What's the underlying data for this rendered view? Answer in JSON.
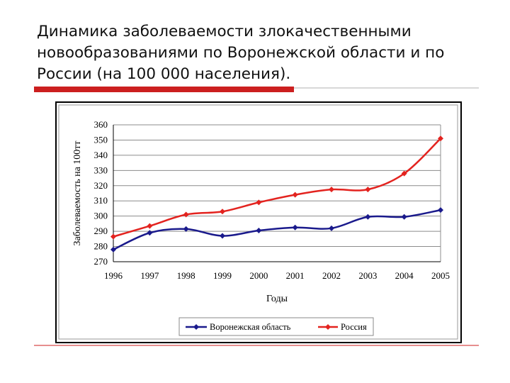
{
  "slide": {
    "title": "Динамика заболеваемости злокачественными новообразованиями по Воронежской области и по России (на 100 000 населения)."
  },
  "colors": {
    "voronezh": "#1a1a8c",
    "russia": "#e3231f",
    "accent_bar": "#cc1f1f"
  },
  "chart_data": {
    "type": "line",
    "title": "",
    "xlabel": "Годы",
    "ylabel": "Заболеваемость на 100тт",
    "x": [
      1996,
      1997,
      1998,
      1999,
      2000,
      2001,
      2002,
      2003,
      2004,
      2005
    ],
    "ylim": [
      270,
      360
    ],
    "yticks": [
      270,
      280,
      290,
      300,
      310,
      320,
      330,
      340,
      350,
      360
    ],
    "grid": true,
    "legend_position": "bottom",
    "series": [
      {
        "name": "Воронежская область",
        "color": "#1a1a8c",
        "marker": "diamond",
        "values": [
          278,
          289,
          291.5,
          287,
          290.5,
          292.5,
          292,
          299.5,
          299.5,
          304
        ]
      },
      {
        "name": "Россия",
        "color": "#e3231f",
        "marker": "diamond",
        "values": [
          286.5,
          293.5,
          301,
          303,
          309,
          314,
          317.5,
          317.5,
          328,
          351
        ]
      }
    ]
  }
}
